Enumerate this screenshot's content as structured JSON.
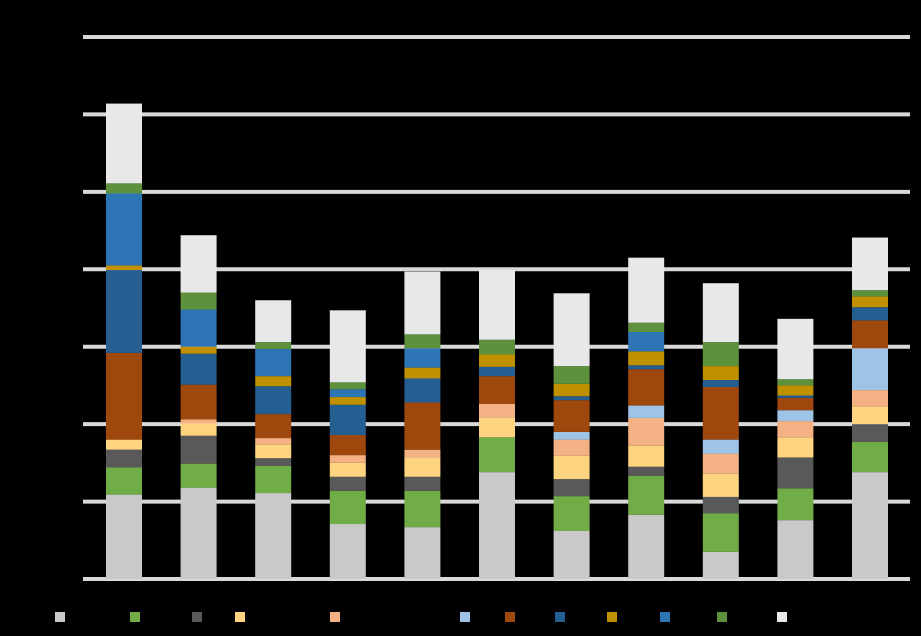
{
  "chart_data": {
    "type": "stacked_bar",
    "ylim": [
      0,
      7
    ],
    "yticks": [
      0,
      1,
      2,
      3,
      4,
      5,
      6,
      7
    ],
    "grid": true,
    "series": [
      {
        "color": "#c9c9c9",
        "values": [
          1.09,
          1.18,
          1.11,
          0.71,
          0.67,
          1.38,
          0.62,
          0.83,
          0.35,
          0.76,
          1.38
        ]
      },
      {
        "color": "#70ad47",
        "values": [
          0.35,
          0.31,
          0.35,
          0.43,
          0.47,
          0.45,
          0.45,
          0.5,
          0.5,
          0.41,
          0.39
        ]
      },
      {
        "color": "#595959",
        "values": [
          0.23,
          0.36,
          0.1,
          0.18,
          0.18,
          0,
          0.22,
          0.12,
          0.21,
          0.4,
          0.23
        ]
      },
      {
        "color": "#ffd480",
        "values": [
          0.13,
          0.16,
          0.18,
          0.18,
          0.25,
          0.26,
          0.3,
          0.27,
          0.3,
          0.26,
          0.23
        ]
      },
      {
        "color": "#f4b183",
        "values": [
          0,
          0.05,
          0.08,
          0.1,
          0.1,
          0.17,
          0.21,
          0.36,
          0.26,
          0.21,
          0.21
        ]
      },
      {
        "color": "#9dc3e6",
        "values": [
          0,
          0,
          0,
          0,
          0,
          0,
          0.1,
          0.16,
          0.18,
          0.14,
          0.54
        ]
      },
      {
        "color": "#9e480e",
        "values": [
          1.12,
          0.45,
          0.31,
          0.26,
          0.61,
          0.36,
          0.41,
          0.47,
          0.68,
          0.16,
          0.36
        ]
      },
      {
        "color": "#255e91",
        "values": [
          1.07,
          0.4,
          0.36,
          0.39,
          0.31,
          0.12,
          0.05,
          0.05,
          0.09,
          0.03,
          0.17
        ]
      },
      {
        "color": "#bf9000",
        "values": [
          0.06,
          0.09,
          0.13,
          0.1,
          0.14,
          0.16,
          0.16,
          0.18,
          0.18,
          0.13,
          0.14
        ]
      },
      {
        "color": "#2e75b6",
        "values": [
          0.93,
          0.48,
          0.35,
          0.1,
          0.25,
          0,
          0,
          0.25,
          0,
          0,
          0
        ]
      },
      {
        "color": "#5e913c",
        "values": [
          0.13,
          0.22,
          0.09,
          0.09,
          0.18,
          0.19,
          0.23,
          0.12,
          0.31,
          0.08,
          0.08
        ]
      },
      {
        "color": "#e8e8e8",
        "values": [
          1.03,
          0.74,
          0.54,
          0.93,
          0.81,
          0.9,
          0.94,
          0.84,
          0.76,
          0.78,
          0.68
        ]
      }
    ]
  }
}
